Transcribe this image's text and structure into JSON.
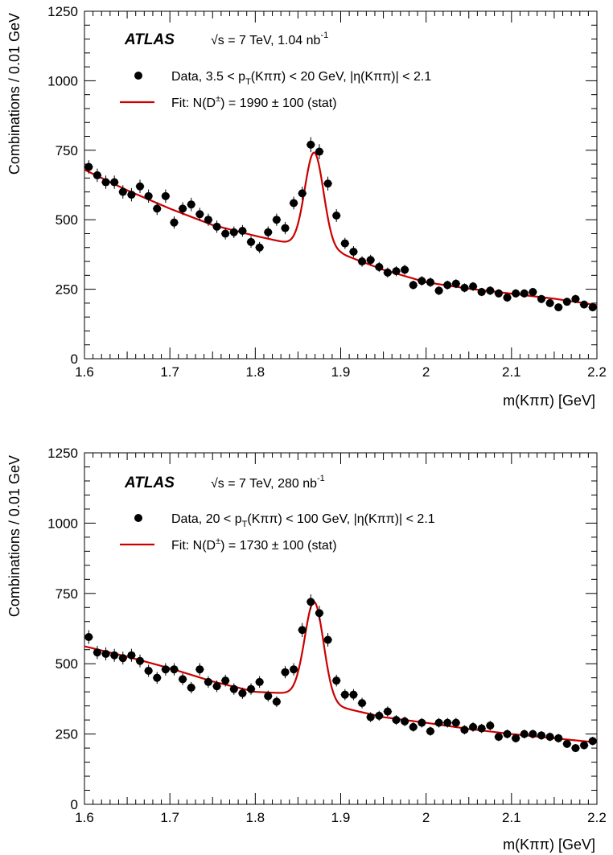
{
  "chart_data": [
    {
      "type": "scatter",
      "experiment": "ATLAS",
      "energy": "√s = 7 TeV, 1.04 nb",
      "energy_sup": "-1",
      "xlabel": "m(Kππ) [GeV]",
      "ylabel": "Combinations / 0.01 GeV",
      "xlim": [
        1.6,
        2.2
      ],
      "ylim": [
        0,
        1250
      ],
      "xticks": [
        "1.6",
        "1.7",
        "1.8",
        "1.9",
        "2",
        "2.1",
        "2.2"
      ],
      "yticks": [
        "0",
        "250",
        "500",
        "750",
        "1000",
        "1250"
      ],
      "legend": {
        "data": "Data, 3.5 < p",
        "data_sub": "T",
        "data_rest": "(Kππ) < 20 GeV, |η(Kππ)| < 2.1",
        "fit": "Fit: N(D",
        "fit_sup": "±",
        "fit_rest": ") = 1990 ± 100 (stat)"
      },
      "series": [
        {
          "x": [
            1.605,
            1.615,
            1.625,
            1.635,
            1.645,
            1.655,
            1.665,
            1.675,
            1.685,
            1.695,
            1.705,
            1.715,
            1.725,
            1.735,
            1.745,
            1.755,
            1.765,
            1.775,
            1.785,
            1.795,
            1.805,
            1.815,
            1.825,
            1.835,
            1.845,
            1.855,
            1.865,
            1.875,
            1.885,
            1.895,
            1.905,
            1.915,
            1.925,
            1.935,
            1.945,
            1.955,
            1.965,
            1.975,
            1.985,
            1.995,
            2.005,
            2.015,
            2.025,
            2.035,
            2.045,
            2.055,
            2.065,
            2.075,
            2.085,
            2.095,
            2.105,
            2.115,
            2.125,
            2.135,
            2.145,
            2.155,
            2.165,
            2.175,
            2.185,
            2.195
          ],
          "y": [
            690,
            660,
            635,
            635,
            600,
            590,
            620,
            585,
            540,
            585,
            490,
            540,
            555,
            520,
            500,
            475,
            450,
            455,
            460,
            420,
            400,
            455,
            500,
            470,
            560,
            595,
            770,
            745,
            630,
            515,
            415,
            385,
            350,
            355,
            330,
            310,
            315,
            320,
            265,
            280,
            275,
            245,
            265,
            270,
            255,
            260,
            240,
            245,
            235,
            220,
            235,
            235,
            240,
            215,
            200,
            185,
            205,
            215,
            195,
            185
          ],
          "err": [
            24,
            24,
            24,
            24,
            24,
            24,
            24,
            24,
            23,
            24,
            22,
            23,
            24,
            23,
            22,
            22,
            21,
            21,
            21,
            21,
            20,
            21,
            22,
            22,
            23,
            24,
            27,
            27,
            25,
            23,
            20,
            20,
            19,
            19,
            18,
            18,
            18,
            18,
            16,
            17,
            17,
            16,
            16,
            16,
            16,
            16,
            15,
            16,
            15,
            15,
            15,
            15,
            15,
            15,
            14,
            14,
            14,
            15,
            14,
            14
          ]
        }
      ],
      "fit": {
        "bg_x": [
          1.6,
          1.65,
          1.7,
          1.75,
          1.8,
          1.85,
          1.9,
          1.95,
          2.0,
          2.05,
          2.1,
          2.15,
          2.2
        ],
        "bg_y": [
          680,
          606,
          540,
          481,
          442,
          408,
          378,
          320,
          275,
          252,
          234,
          216,
          193
        ],
        "peak_mean": 1.869,
        "peak_amp": 345,
        "peak_sigma": 0.011
      }
    },
    {
      "type": "scatter",
      "experiment": "ATLAS",
      "energy": "√s = 7 TeV, 280 nb",
      "energy_sup": "-1",
      "xlabel": "m(Kππ) [GeV]",
      "ylabel": "Combinations / 0.01 GeV",
      "xlim": [
        1.6,
        2.2
      ],
      "ylim": [
        0,
        1250
      ],
      "xticks": [
        "1.6",
        "1.7",
        "1.8",
        "1.9",
        "2",
        "2.1",
        "2.2"
      ],
      "yticks": [
        "0",
        "250",
        "500",
        "750",
        "1000",
        "1250"
      ],
      "legend": {
        "data": "Data, 20 < p",
        "data_sub": "T",
        "data_rest": "(Kππ) < 100 GeV, |η(Kππ)| < 2.1",
        "fit": "Fit: N(D",
        "fit_sup": "±",
        "fit_rest": ") = 1730 ± 100 (stat)"
      },
      "series": [
        {
          "x": [
            1.605,
            1.615,
            1.625,
            1.635,
            1.645,
            1.655,
            1.665,
            1.675,
            1.685,
            1.695,
            1.705,
            1.715,
            1.725,
            1.735,
            1.745,
            1.755,
            1.765,
            1.775,
            1.785,
            1.795,
            1.805,
            1.815,
            1.825,
            1.835,
            1.845,
            1.855,
            1.865,
            1.875,
            1.885,
            1.895,
            1.905,
            1.915,
            1.925,
            1.935,
            1.945,
            1.955,
            1.965,
            1.975,
            1.985,
            1.995,
            2.005,
            2.015,
            2.025,
            2.035,
            2.045,
            2.055,
            2.065,
            2.075,
            2.085,
            2.095,
            2.105,
            2.115,
            2.125,
            2.135,
            2.145,
            2.155,
            2.165,
            2.175,
            2.185,
            2.195
          ],
          "y": [
            595,
            540,
            535,
            530,
            520,
            530,
            510,
            475,
            450,
            480,
            480,
            445,
            415,
            480,
            435,
            420,
            440,
            410,
            395,
            410,
            435,
            385,
            365,
            470,
            480,
            620,
            720,
            680,
            585,
            440,
            390,
            390,
            360,
            310,
            315,
            330,
            300,
            295,
            275,
            290,
            260,
            290,
            290,
            290,
            265,
            275,
            270,
            280,
            240,
            250,
            235,
            250,
            250,
            245,
            240,
            235,
            215,
            200,
            210,
            225
          ]
        }
      ],
      "fit": {
        "bg_x": [
          1.6,
          1.65,
          1.7,
          1.75,
          1.8,
          1.85,
          1.9,
          1.95,
          2.0,
          2.05,
          2.1,
          2.15,
          2.2
        ],
        "bg_y": [
          562,
          525,
          484,
          437,
          400,
          393,
          345,
          310,
          290,
          268,
          250,
          235,
          220
        ],
        "peak_mean": 1.869,
        "peak_amp": 345,
        "peak_sigma": 0.011
      }
    }
  ]
}
